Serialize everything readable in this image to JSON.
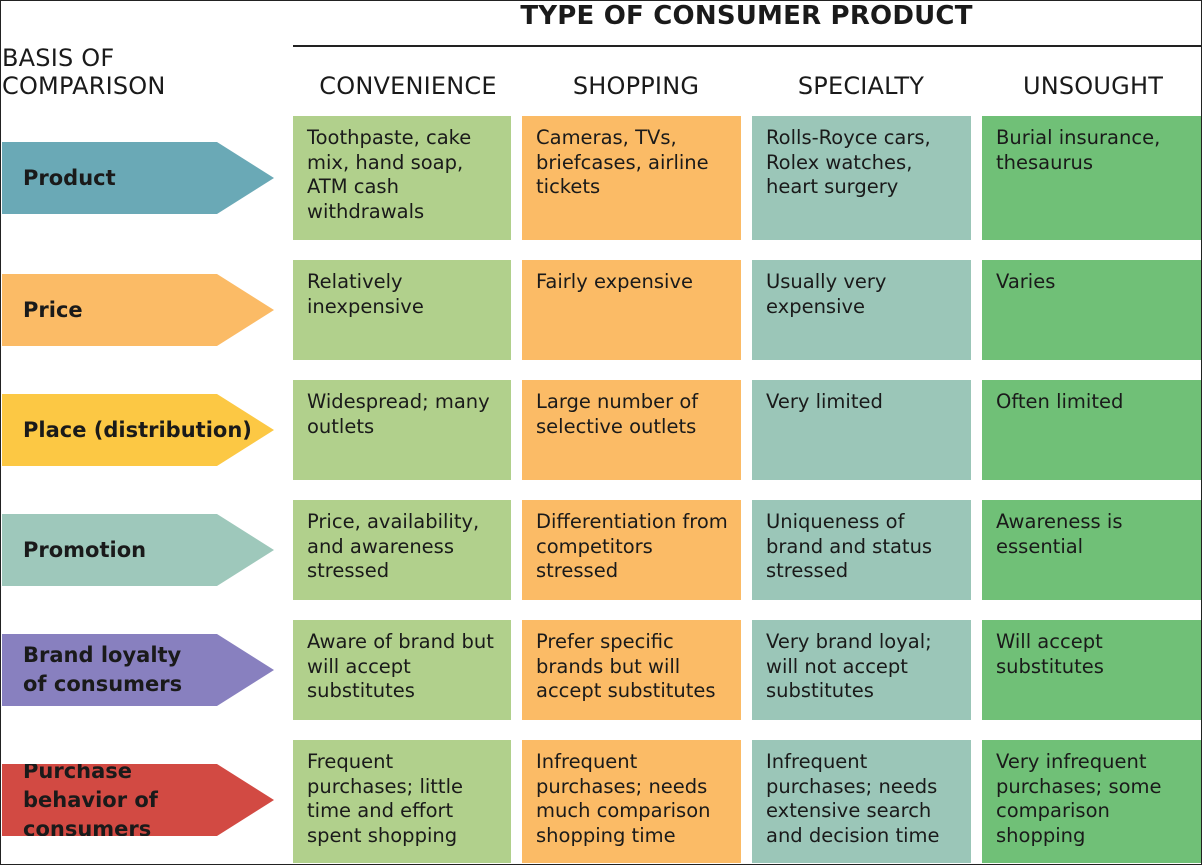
{
  "title": "TYPE OF CONSUMER PRODUCT",
  "basis_label": "BASIS OF\nCOMPARISON",
  "columns": [
    "CONVENIENCE",
    "SHOPPING",
    "SPECIALTY",
    "UNSOUGHT"
  ],
  "colors": {
    "convenience": "#b1d08c",
    "shopping": "#fbbb66",
    "specialty": "#9bc6b8",
    "unsought": "#70c077"
  },
  "rows": [
    {
      "label": "Product",
      "arrow_color": "#6aa9b6",
      "cells": [
        "Toothpaste, cake mix, hand soap, ATM cash withdrawals",
        "Cameras, TVs, briefcases, airline tickets",
        "Rolls-Royce cars, Rolex watches, heart surgery",
        "Burial insurance, thesaurus"
      ]
    },
    {
      "label": "Price",
      "arrow_color": "#fbbb66",
      "cells": [
        "Relatively inexpensive",
        "Fairly expensive",
        "Usually very expensive",
        "Varies"
      ]
    },
    {
      "label": "Place (distribution)",
      "arrow_color": "#fcc844",
      "cells": [
        "Widespread; many outlets",
        "Large number of selective outlets",
        "Very limited",
        "Often limited"
      ]
    },
    {
      "label": "Promotion",
      "arrow_color": "#9ec8bb",
      "cells": [
        "Price, availability, and awareness stressed",
        "Differentiation from competitors stressed",
        "Uniqueness of brand and status stressed",
        "Awareness is essential"
      ]
    },
    {
      "label": "Brand loyalty of consumers",
      "arrow_color": "#8880bf",
      "cells": [
        "Aware of brand but will accept substitutes",
        "Prefer specific brands but will accept substitutes",
        "Very brand loyal; will not accept substitutes",
        "Will accept substitutes"
      ]
    },
    {
      "label": "Purchase behavior of consumers",
      "arrow_color": "#d24a43",
      "cells": [
        "Frequent purchases; little time and effort spent shopping",
        "Infrequent purchases; needs much comparison shopping time",
        "Infrequent purchases; needs extensive search and decision time",
        "Very infrequent purchases; some comparison shopping"
      ]
    }
  ]
}
